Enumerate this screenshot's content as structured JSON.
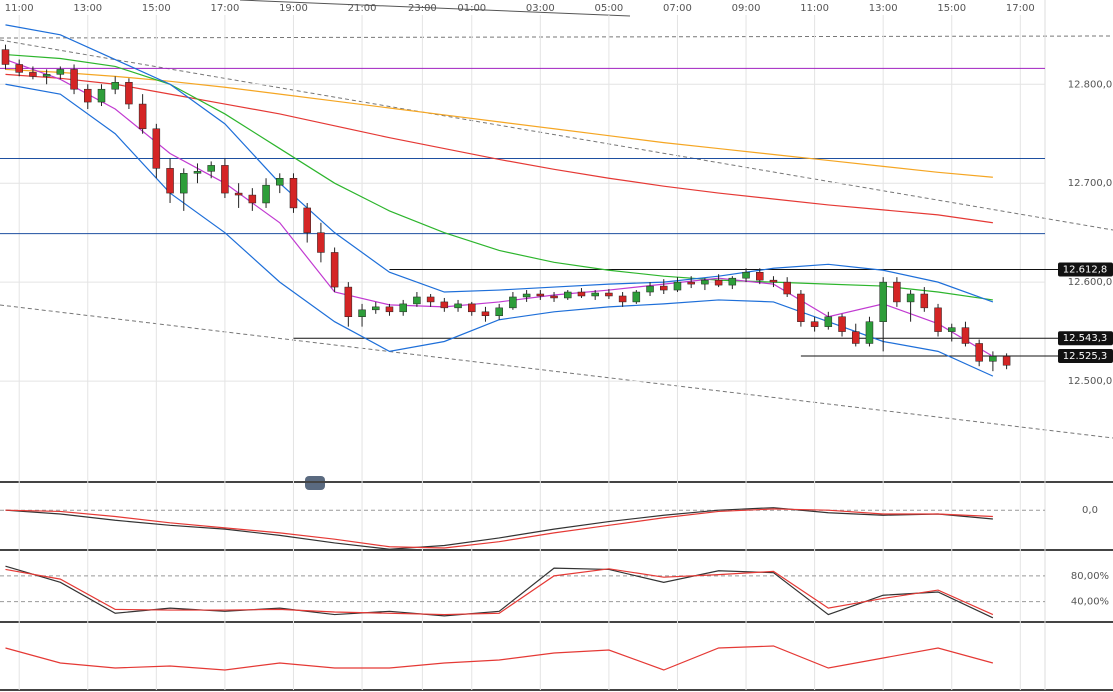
{
  "chart_data": {
    "type": "candlestick",
    "xlim": [
      -0.4,
      75.8
    ],
    "xticks": [
      {
        "value": 1,
        "label": "11:00"
      },
      {
        "value": 6,
        "label": "13:00"
      },
      {
        "value": 11,
        "label": "15:00"
      },
      {
        "value": 16,
        "label": "17:00"
      },
      {
        "value": 21,
        "label": "19:00"
      },
      {
        "value": 26,
        "label": "21:00"
      },
      {
        "value": 30.4,
        "label": "23:00"
      },
      {
        "value": 34,
        "label": "01:00"
      },
      {
        "value": 39,
        "label": "03:00"
      },
      {
        "value": 44,
        "label": "05:00"
      },
      {
        "value": 49,
        "label": "07:00"
      },
      {
        "value": 54,
        "label": "09:00"
      },
      {
        "value": 59,
        "label": "11:00"
      },
      {
        "value": 64,
        "label": "13:00"
      },
      {
        "value": 69,
        "label": "15:00"
      },
      {
        "value": 74,
        "label": "17:00"
      }
    ],
    "ylim": [
      12400,
      12870
    ],
    "yticks": [
      {
        "value": 12800,
        "label": "12.800,0"
      },
      {
        "value": 12700,
        "label": "12.700,0"
      },
      {
        "value": 12600,
        "label": "12.600,0"
      },
      {
        "value": 12500,
        "label": "12.500,0"
      }
    ],
    "up_color": "#2e9e3a",
    "down_color": "#d42525",
    "ohlc": [
      [
        12835,
        12840,
        12815,
        12820
      ],
      [
        12820,
        12825,
        12808,
        12812
      ],
      [
        12812,
        12818,
        12805,
        12808
      ],
      [
        12808,
        12815,
        12800,
        12810
      ],
      [
        12810,
        12818,
        12805,
        12815
      ],
      [
        12815,
        12820,
        12790,
        12795
      ],
      [
        12795,
        12800,
        12775,
        12782
      ],
      [
        12782,
        12800,
        12778,
        12795
      ],
      [
        12795,
        12808,
        12790,
        12802
      ],
      [
        12802,
        12806,
        12775,
        12780
      ],
      [
        12780,
        12790,
        12750,
        12755
      ],
      [
        12755,
        12760,
        12705,
        12715
      ],
      [
        12715,
        12725,
        12680,
        12690
      ],
      [
        12690,
        12715,
        12672,
        12710
      ],
      [
        12710,
        12720,
        12700,
        12712
      ],
      [
        12712,
        12722,
        12705,
        12718
      ],
      [
        12718,
        12725,
        12685,
        12690
      ],
      [
        12690,
        12700,
        12675,
        12688
      ],
      [
        12688,
        12695,
        12672,
        12680
      ],
      [
        12680,
        12705,
        12675,
        12698
      ],
      [
        12698,
        12710,
        12690,
        12705
      ],
      [
        12705,
        12710,
        12670,
        12675
      ],
      [
        12675,
        12680,
        12640,
        12650
      ],
      [
        12650,
        12660,
        12620,
        12630
      ],
      [
        12630,
        12635,
        12590,
        12595
      ],
      [
        12595,
        12600,
        12555,
        12565
      ],
      [
        12565,
        12578,
        12555,
        12572
      ],
      [
        12572,
        12580,
        12568,
        12575
      ],
      [
        12575,
        12578,
        12566,
        12570
      ],
      [
        12570,
        12582,
        12566,
        12578
      ],
      [
        12578,
        12590,
        12575,
        12585
      ],
      [
        12585,
        12588,
        12575,
        12580
      ],
      [
        12580,
        12584,
        12570,
        12574
      ],
      [
        12574,
        12582,
        12570,
        12578
      ],
      [
        12578,
        12580,
        12566,
        12570
      ],
      [
        12570,
        12575,
        12560,
        12566
      ],
      [
        12566,
        12578,
        12562,
        12574
      ],
      [
        12574,
        12590,
        12572,
        12585
      ],
      [
        12585,
        12592,
        12580,
        12588
      ],
      [
        12588,
        12592,
        12582,
        12586
      ],
      [
        12586,
        12590,
        12580,
        12584
      ],
      [
        12584,
        12592,
        12582,
        12590
      ],
      [
        12590,
        12594,
        12584,
        12586
      ],
      [
        12586,
        12592,
        12582,
        12589
      ],
      [
        12589,
        12593,
        12583,
        12586
      ],
      [
        12586,
        12590,
        12575,
        12580
      ],
      [
        12580,
        12592,
        12578,
        12590
      ],
      [
        12590,
        12600,
        12586,
        12596
      ],
      [
        12596,
        12603,
        12588,
        12592
      ],
      [
        12592,
        12605,
        12590,
        12600
      ],
      [
        12600,
        12606,
        12594,
        12598
      ],
      [
        12598,
        12604,
        12592,
        12602
      ],
      [
        12602,
        12608,
        12595,
        12597
      ],
      [
        12597,
        12606,
        12593,
        12604
      ],
      [
        12604,
        12614,
        12600,
        12610
      ],
      [
        12610,
        12614,
        12598,
        12602
      ],
      [
        12602,
        12606,
        12595,
        12600
      ],
      [
        12600,
        12605,
        12585,
        12588
      ],
      [
        12588,
        12592,
        12555,
        12560
      ],
      [
        12560,
        12565,
        12550,
        12555
      ],
      [
        12555,
        12570,
        12552,
        12565
      ],
      [
        12565,
        12568,
        12545,
        12550
      ],
      [
        12550,
        12558,
        12535,
        12538
      ],
      [
        12538,
        12565,
        12535,
        12560
      ],
      [
        12560,
        12605,
        12530,
        12600
      ],
      [
        12600,
        12605,
        12575,
        12580
      ],
      [
        12580,
        12592,
        12560,
        12588
      ],
      [
        12588,
        12595,
        12570,
        12574
      ],
      [
        12574,
        12578,
        12545,
        12550
      ],
      [
        12550,
        12558,
        12540,
        12554
      ],
      [
        12554,
        12560,
        12535,
        12538
      ],
      [
        12538,
        12542,
        12515,
        12520
      ],
      [
        12520,
        12530,
        12510,
        12525
      ],
      [
        12525,
        12528,
        12512,
        12516
      ]
    ],
    "x": [
      0,
      4,
      8,
      12,
      16,
      20,
      24,
      28,
      32,
      36,
      40,
      44,
      48,
      52,
      56,
      60,
      64,
      68,
      72
    ],
    "series": [
      {
        "color": "#f5a623",
        "values": [
          12815,
          12812,
          12808,
          12803,
          12797,
          12790,
          12783,
          12776,
          12769,
          12762,
          12755,
          12748,
          12741,
          12735,
          12729,
          12723,
          12717,
          12711,
          12706
        ]
      },
      {
        "color": "#e53935",
        "values": [
          12810,
          12806,
          12800,
          12790,
          12780,
          12770,
          12758,
          12746,
          12735,
          12724,
          12714,
          12705,
          12697,
          12690,
          12684,
          12678,
          12673,
          12668,
          12660
        ]
      },
      {
        "color": "#2db52d",
        "values": [
          12830,
          12826,
          12818,
          12800,
          12770,
          12735,
          12700,
          12672,
          12650,
          12632,
          12620,
          12612,
          12606,
          12602,
          12600,
          12598,
          12596,
          12590,
          12582
        ]
      },
      {
        "color": "#1e6fd9",
        "values": [
          12860,
          12850,
          12825,
          12800,
          12760,
          12700,
          12650,
          12610,
          12590,
          12592,
          12595,
          12598,
          12600,
          12606,
          12614,
          12618,
          12612,
          12600,
          12580
        ]
      },
      {
        "color": "#1e6fd9",
        "values": [
          12800,
          12790,
          12750,
          12690,
          12650,
          12600,
          12560,
          12530,
          12540,
          12562,
          12570,
          12575,
          12578,
          12582,
          12580,
          12560,
          12540,
          12530,
          12505
        ]
      },
      {
        "color": "#c13ad1",
        "values": [
          12825,
          12805,
          12775,
          12730,
          12700,
          12660,
          12590,
          12577,
          12575,
          12580,
          12587,
          12592,
          12598,
          12604,
          12598,
          12565,
          12578,
          12558,
          12525
        ]
      }
    ],
    "hlines": [
      {
        "value": 12816,
        "color": "#a020c0"
      },
      {
        "value": 12725,
        "color": "#1e4fa0"
      },
      {
        "value": 12649,
        "color": "#1e4fa0"
      }
    ],
    "levels": [
      {
        "value": 12612.8,
        "label": "12.612,8"
      },
      {
        "value": 12543.3,
        "label": "12.543,3"
      },
      {
        "value": 12525.3,
        "label": "12.525,3"
      }
    ],
    "panels": [
      {
        "ylim": [
          -30,
          20
        ],
        "yticks": [
          {
            "value": 0,
            "label": "0,0"
          }
        ],
        "series": [
          {
            "color": "#333333",
            "values": [
              0,
              -3,
              -8,
              -12,
              -15,
              -20,
              -26,
              -31,
              -28,
              -22,
              -15,
              -9,
              -4,
              0,
              2,
              -2,
              -4,
              -3,
              -7
            ]
          },
          {
            "color": "#e53935",
            "values": [
              0,
              -1,
              -5,
              -10,
              -14,
              -18,
              -23,
              -29,
              -30,
              -25,
              -18,
              -12,
              -6,
              -1,
              1,
              0,
              -3,
              -3,
              -5
            ]
          }
        ]
      },
      {
        "ylim": [
          10,
          100
        ],
        "yticks": [
          {
            "value": 80,
            "label": "80,00%"
          },
          {
            "value": 40,
            "label": "40,00%"
          }
        ],
        "series": [
          {
            "color": "#333333",
            "values": [
              95,
              70,
              22,
              30,
              25,
              30,
              20,
              25,
              18,
              25,
              92,
              90,
              70,
              88,
              85,
              20,
              50,
              55,
              15
            ]
          },
          {
            "color": "#e53935",
            "values": [
              90,
              75,
              28,
              27,
              27,
              28,
              24,
              22,
              20,
              22,
              80,
              91,
              78,
              82,
              87,
              30,
              45,
              58,
              20
            ]
          }
        ]
      },
      {
        "ylim": [
          20,
          80
        ],
        "series": [
          {
            "color": "#e53935",
            "values": [
              60,
              45,
              40,
              42,
              38,
              45,
              40,
              40,
              45,
              48,
              55,
              58,
              38,
              60,
              62,
              40,
              50,
              60,
              45
            ]
          }
        ]
      }
    ]
  }
}
